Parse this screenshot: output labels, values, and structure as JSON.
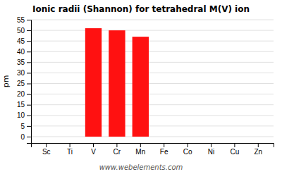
{
  "chart_data": {
    "type": "bar",
    "title": "Ionic radii (Shannon) for tetrahedral M(V) ion",
    "ylabel": "pm",
    "categories": [
      "Sc",
      "Ti",
      "V",
      "Cr",
      "Mn",
      "Fe",
      "Co",
      "Ni",
      "Cu",
      "Zn"
    ],
    "values": [
      0,
      0,
      51,
      50,
      47,
      0,
      0,
      0,
      0,
      0
    ],
    "color": "#ff1111",
    "ylim": [
      -3,
      55
    ],
    "yticks": [
      0,
      5,
      10,
      15,
      20,
      25,
      30,
      35,
      40,
      45,
      50,
      55
    ],
    "grid": true,
    "annotations": [
      "www.webelements.com"
    ]
  }
}
